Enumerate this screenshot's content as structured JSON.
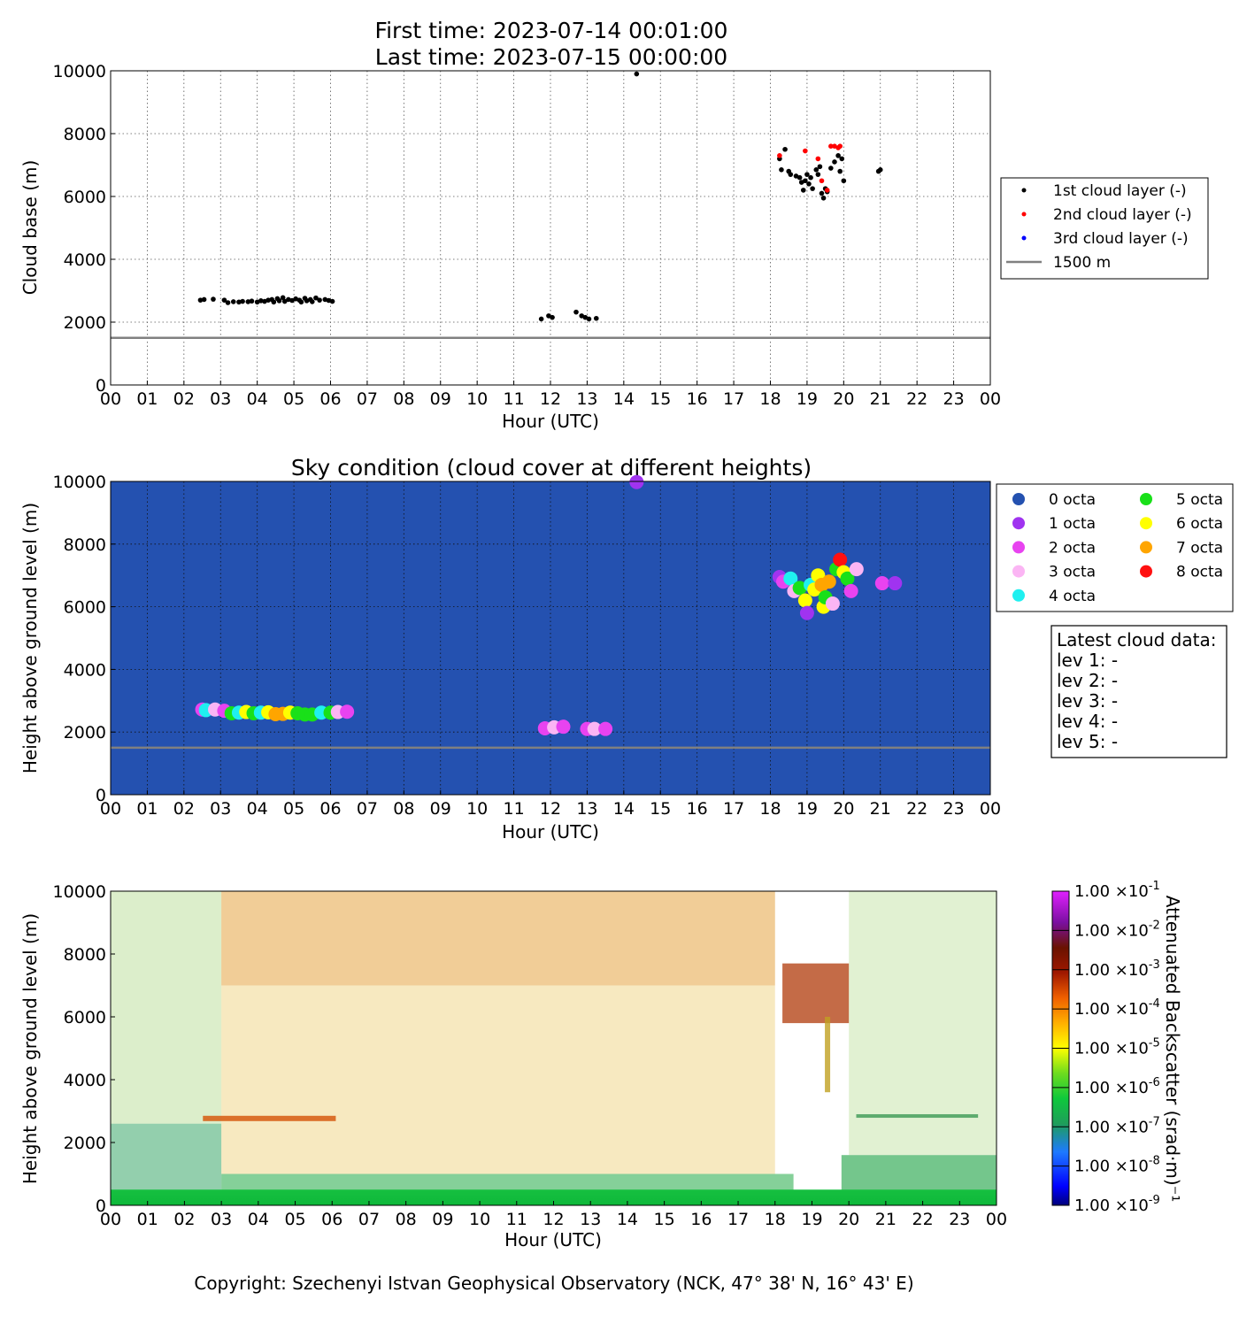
{
  "header": {
    "first_time": "First time: 2023-07-14 00:01:00",
    "last_time": "Last time: 2023-07-15 00:00:00"
  },
  "footer": {
    "copyright": "Copyright: Szechenyi Istvan Geophysical Observatory (NCK, 47° 38' N, 16° 43' E)"
  },
  "colors": {
    "layer1": "#000000",
    "layer2": "#ff0000",
    "layer3": "#0000ff",
    "line_1500": "#808080",
    "sky_background": "#2451b0"
  },
  "chart_data": [
    {
      "type": "scatter",
      "title": "",
      "xlabel": "Hour (UTC)",
      "ylabel": "Cloud base (m)",
      "xlim": [
        0,
        24
      ],
      "ylim": [
        0,
        10000
      ],
      "xtick_labels": [
        "00",
        "01",
        "02",
        "03",
        "04",
        "05",
        "06",
        "07",
        "08",
        "09",
        "10",
        "11",
        "12",
        "13",
        "14",
        "15",
        "16",
        "17",
        "18",
        "19",
        "20",
        "21",
        "22",
        "23",
        "00"
      ],
      "ytick_labels": [
        "0",
        "2000",
        "4000",
        "6000",
        "8000",
        "10000"
      ],
      "grid": true,
      "legend_position": "right",
      "reference_line": {
        "name": "1500 m",
        "y": 1500
      },
      "series": [
        {
          "name": "1st cloud layer (-)",
          "color": "#000000",
          "points": [
            [
              2.45,
              2700
            ],
            [
              2.55,
              2720
            ],
            [
              2.8,
              2730
            ],
            [
              3.1,
              2700
            ],
            [
              3.2,
              2620
            ],
            [
              3.35,
              2650
            ],
            [
              3.5,
              2640
            ],
            [
              3.6,
              2660
            ],
            [
              3.75,
              2650
            ],
            [
              3.85,
              2670
            ],
            [
              4.0,
              2640
            ],
            [
              4.1,
              2680
            ],
            [
              4.2,
              2660
            ],
            [
              4.3,
              2700
            ],
            [
              4.4,
              2720
            ],
            [
              4.45,
              2640
            ],
            [
              4.55,
              2750
            ],
            [
              4.6,
              2680
            ],
            [
              4.7,
              2780
            ],
            [
              4.75,
              2660
            ],
            [
              4.85,
              2720
            ],
            [
              4.95,
              2690
            ],
            [
              5.05,
              2740
            ],
            [
              5.15,
              2700
            ],
            [
              5.2,
              2640
            ],
            [
              5.3,
              2760
            ],
            [
              5.35,
              2680
            ],
            [
              5.45,
              2720
            ],
            [
              5.5,
              2650
            ],
            [
              5.6,
              2770
            ],
            [
              5.7,
              2700
            ],
            [
              5.85,
              2720
            ],
            [
              5.95,
              2690
            ],
            [
              6.05,
              2660
            ],
            [
              11.75,
              2100
            ],
            [
              11.95,
              2200
            ],
            [
              12.05,
              2150
            ],
            [
              12.7,
              2320
            ],
            [
              12.85,
              2200
            ],
            [
              12.95,
              2150
            ],
            [
              13.05,
              2100
            ],
            [
              13.25,
              2120
            ],
            [
              14.35,
              9900
            ],
            [
              18.25,
              7200
            ],
            [
              18.3,
              6850
            ],
            [
              18.4,
              7500
            ],
            [
              18.5,
              6800
            ],
            [
              18.55,
              6700
            ],
            [
              18.7,
              6650
            ],
            [
              18.8,
              6600
            ],
            [
              18.85,
              6450
            ],
            [
              18.9,
              6200
            ],
            [
              18.95,
              6500
            ],
            [
              19.0,
              6700
            ],
            [
              19.05,
              6400
            ],
            [
              19.1,
              6600
            ],
            [
              19.15,
              6250
            ],
            [
              19.25,
              6850
            ],
            [
              19.3,
              6700
            ],
            [
              19.35,
              6950
            ],
            [
              19.4,
              6100
            ],
            [
              19.45,
              5950
            ],
            [
              19.5,
              6250
            ],
            [
              19.55,
              6150
            ],
            [
              19.65,
              6900
            ],
            [
              19.75,
              7100
            ],
            [
              19.85,
              7300
            ],
            [
              19.9,
              6800
            ],
            [
              19.95,
              7200
            ],
            [
              20.0,
              6500
            ],
            [
              20.95,
              6800
            ],
            [
              21.0,
              6850
            ]
          ]
        },
        {
          "name": "2nd cloud layer (-)",
          "color": "#ff0000",
          "points": [
            [
              18.25,
              7300
            ],
            [
              18.95,
              7450
            ],
            [
              19.3,
              7200
            ],
            [
              19.4,
              6500
            ],
            [
              19.55,
              6200
            ],
            [
              19.65,
              7600
            ],
            [
              19.75,
              7600
            ],
            [
              19.85,
              7550
            ],
            [
              19.9,
              7600
            ]
          ]
        },
        {
          "name": "3rd cloud layer (-)",
          "color": "#0000ff",
          "points": []
        }
      ]
    },
    {
      "type": "scatter",
      "title": "Sky condition (cloud cover at different heights)",
      "xlabel": "Hour (UTC)",
      "ylabel": "Height above ground level (m)",
      "xlim": [
        0,
        24
      ],
      "ylim": [
        0,
        10000
      ],
      "xtick_labels": [
        "00",
        "01",
        "02",
        "03",
        "04",
        "05",
        "06",
        "07",
        "08",
        "09",
        "10",
        "11",
        "12",
        "13",
        "14",
        "15",
        "16",
        "17",
        "18",
        "19",
        "20",
        "21",
        "22",
        "23",
        "00"
      ],
      "ytick_labels": [
        "0",
        "2000",
        "4000",
        "6000",
        "8000",
        "10000"
      ],
      "grid": true,
      "legend_position": "right",
      "reference_line": {
        "y": 1500
      },
      "categories": [
        {
          "name": "0 octa",
          "color": "#2451b0"
        },
        {
          "name": "1 octa",
          "color": "#a033f0"
        },
        {
          "name": "2 octa",
          "color": "#e843f0"
        },
        {
          "name": "3 octa",
          "color": "#fbb5f4"
        },
        {
          "name": "4 octa",
          "color": "#1ff0f0"
        },
        {
          "name": "5 octa",
          "color": "#19e019"
        },
        {
          "name": "6 octa",
          "color": "#ffff00"
        },
        {
          "name": "7 octa",
          "color": "#ffa500"
        },
        {
          "name": "8 octa",
          "color": "#ff1010"
        }
      ],
      "points": [
        [
          2.5,
          2720,
          2
        ],
        [
          2.6,
          2700,
          4
        ],
        [
          2.85,
          2720,
          3
        ],
        [
          3.1,
          2680,
          2
        ],
        [
          3.3,
          2600,
          5
        ],
        [
          3.5,
          2620,
          4
        ],
        [
          3.7,
          2640,
          6
        ],
        [
          3.9,
          2600,
          5
        ],
        [
          4.1,
          2620,
          4
        ],
        [
          4.3,
          2630,
          6
        ],
        [
          4.5,
          2570,
          7
        ],
        [
          4.7,
          2580,
          7
        ],
        [
          4.9,
          2620,
          6
        ],
        [
          5.1,
          2600,
          5
        ],
        [
          5.3,
          2560,
          5
        ],
        [
          5.5,
          2560,
          5
        ],
        [
          5.75,
          2620,
          4
        ],
        [
          6.0,
          2620,
          5
        ],
        [
          6.2,
          2640,
          3
        ],
        [
          6.45,
          2650,
          2
        ],
        [
          11.85,
          2120,
          2
        ],
        [
          12.1,
          2150,
          3
        ],
        [
          12.35,
          2170,
          2
        ],
        [
          13.0,
          2100,
          2
        ],
        [
          13.2,
          2100,
          3
        ],
        [
          13.5,
          2100,
          2
        ],
        [
          14.35,
          9980,
          1
        ],
        [
          18.25,
          6950,
          1
        ],
        [
          18.35,
          6800,
          2
        ],
        [
          18.55,
          6900,
          4
        ],
        [
          18.65,
          6500,
          3
        ],
        [
          18.8,
          6600,
          5
        ],
        [
          18.95,
          6200,
          6
        ],
        [
          19.0,
          5800,
          1
        ],
        [
          19.1,
          6700,
          4
        ],
        [
          19.2,
          6550,
          6
        ],
        [
          19.3,
          7000,
          6
        ],
        [
          19.4,
          6700,
          7
        ],
        [
          19.45,
          6000,
          6
        ],
        [
          19.5,
          6300,
          5
        ],
        [
          19.6,
          6800,
          7
        ],
        [
          19.7,
          6100,
          3
        ],
        [
          19.8,
          7200,
          5
        ],
        [
          19.9,
          7500,
          8
        ],
        [
          20.0,
          7100,
          6
        ],
        [
          20.1,
          6900,
          5
        ],
        [
          20.2,
          6500,
          2
        ],
        [
          20.35,
          7200,
          3
        ],
        [
          21.05,
          6750,
          2
        ],
        [
          21.4,
          6750,
          1
        ]
      ]
    },
    {
      "type": "heatmap",
      "title": "",
      "xlabel": "Hour (UTC)",
      "ylabel": "Height above ground level (m)",
      "xlim": [
        0,
        24
      ],
      "ylim": [
        0,
        10000
      ],
      "xtick_labels": [
        "00",
        "01",
        "02",
        "03",
        "04",
        "05",
        "06",
        "07",
        "08",
        "09",
        "10",
        "11",
        "12",
        "13",
        "14",
        "15",
        "16",
        "17",
        "18",
        "19",
        "20",
        "21",
        "22",
        "23",
        "00"
      ],
      "ytick_labels": [
        "0",
        "2000",
        "4000",
        "6000",
        "8000",
        "10000"
      ],
      "colorbar": {
        "label": "Attenuated Backscatter (srad·m)⁻¹",
        "scale": "log",
        "range": [
          1e-09,
          0.1
        ],
        "ticks": [
          {
            "mantissa": "1.00",
            "exp": "-9"
          },
          {
            "mantissa": "1.00",
            "exp": "-8"
          },
          {
            "mantissa": "1.00",
            "exp": "-7"
          },
          {
            "mantissa": "1.00",
            "exp": "-6"
          },
          {
            "mantissa": "1.00",
            "exp": "-5"
          },
          {
            "mantissa": "1.00",
            "exp": "-4"
          },
          {
            "mantissa": "1.00",
            "exp": "-3"
          },
          {
            "mantissa": "1.00",
            "exp": "-2"
          },
          {
            "mantissa": "1.00",
            "exp": "-1"
          }
        ]
      }
    }
  ],
  "latest_cloud_data": {
    "title": "Latest cloud data:",
    "lines": [
      "lev 1: -",
      "lev 2: -",
      "lev 3: -",
      "lev 4: -",
      "lev 5: -"
    ]
  }
}
